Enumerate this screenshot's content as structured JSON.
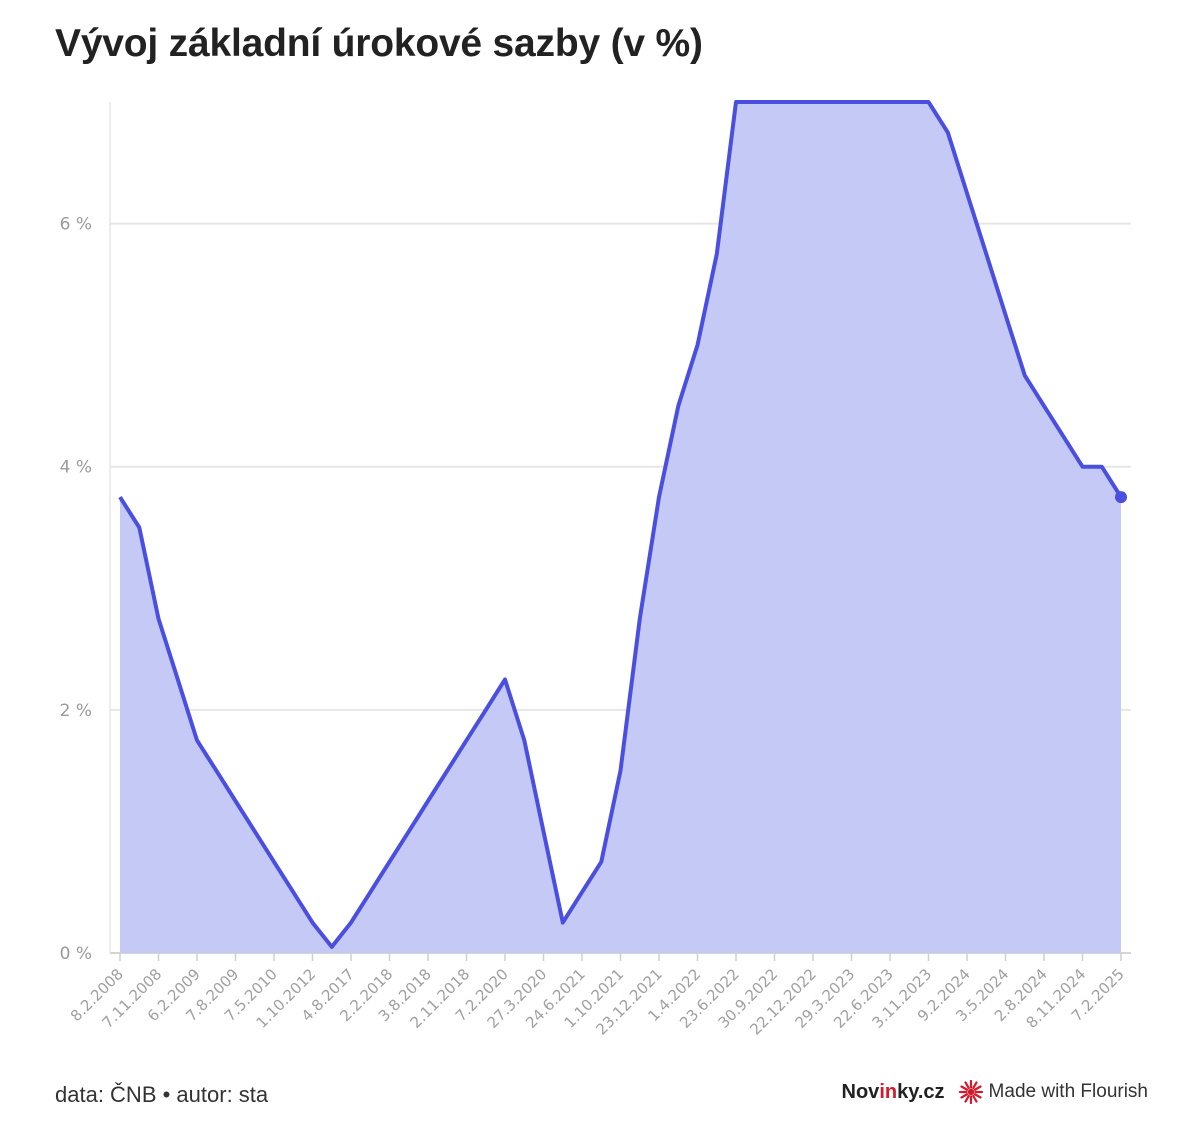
{
  "header": {
    "title": "Vývoj základní úrokové sazby (v %)"
  },
  "footer": {
    "source": "data: ČNB • autor: sta",
    "brand_left": "Nov",
    "brand_mid": "in",
    "brand_right": "ky.cz",
    "made_with": "Made with Flourish"
  },
  "colors": {
    "line": "#4a4fe0",
    "fill": "#c5c9f6",
    "grid": "#e6e6e6",
    "brand_red": "#d3192b"
  },
  "chart_data": {
    "type": "area",
    "title": "Vývoj základní úrokové sazby (v %)",
    "xlabel": "",
    "ylabel": "",
    "ylim": [
      0,
      7
    ],
    "y_ticks": [
      0,
      2,
      4,
      6
    ],
    "y_tick_labels": [
      "0 %",
      "2 %",
      "4 %",
      "6 %"
    ],
    "grid": true,
    "x_tick_labels": [
      "8.2.2008",
      "7.11.2008",
      "6.2.2009",
      "7.8.2009",
      "7.5.2010",
      "1.10.2012",
      "4.8.2017",
      "2.2.2018",
      "3.8.2018",
      "2.11.2018",
      "7.2.2020",
      "27.3.2020",
      "24.6.2021",
      "1.10.2021",
      "23.12.2021",
      "1.4.2022",
      "23.6.2022",
      "30.9.2022",
      "22.12.2022",
      "29.3.2023",
      "22.6.2023",
      "3.11.2023",
      "9.2.2024",
      "3.5.2024",
      "2.8.2024",
      "8.11.2024",
      "7.2.2025"
    ],
    "values": [
      3.75,
      3.5,
      2.75,
      2.25,
      1.75,
      1.5,
      1.25,
      1.0,
      0.75,
      0.5,
      0.25,
      0.05,
      0.25,
      0.5,
      0.75,
      1.0,
      1.25,
      1.5,
      1.75,
      2.0,
      2.25,
      1.75,
      1.0,
      0.25,
      0.5,
      0.75,
      1.5,
      2.75,
      3.75,
      4.5,
      5.0,
      5.75,
      7.0,
      7.0,
      7.0,
      7.0,
      7.0,
      7.0,
      7.0,
      7.0,
      7.0,
      7.0,
      7.0,
      6.75,
      6.25,
      5.75,
      5.25,
      4.75,
      4.5,
      4.25,
      4.0,
      4.0,
      3.75
    ]
  }
}
